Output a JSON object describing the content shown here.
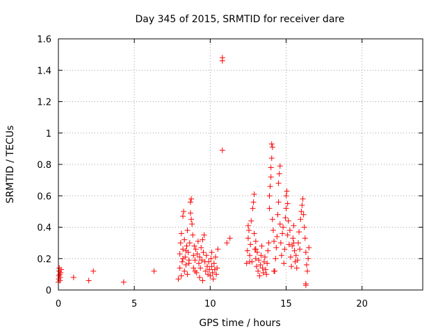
{
  "chart_data": {
    "type": "scatter",
    "title": "Day 345 of 2015, SRMTID for receiver dare",
    "xlabel": "GPS time / hours",
    "ylabel": "SRMTID / TECUs",
    "xlim": [
      0,
      24
    ],
    "ylim": [
      0,
      1.6
    ],
    "xticks": [
      0,
      5,
      10,
      15,
      20
    ],
    "xtick_labels": [
      "0",
      "5",
      "10",
      "15",
      "20"
    ],
    "yticks": [
      0,
      0.2,
      0.4,
      0.6,
      0.8,
      1.0,
      1.2,
      1.4,
      1.6
    ],
    "ytick_labels": [
      "0",
      "0.2",
      "0.4",
      "0.6",
      "0.8",
      "1",
      "1.2",
      "1.4",
      "1.6"
    ],
    "grid": true,
    "marker": "+",
    "color": "#ff0000",
    "series": [
      {
        "name": "SRMTID",
        "points": [
          [
            0.0,
            0.05
          ],
          [
            0.02,
            0.07
          ],
          [
            0.03,
            0.09
          ],
          [
            0.05,
            0.12
          ],
          [
            0.06,
            0.14
          ],
          [
            0.08,
            0.1
          ],
          [
            0.1,
            0.06
          ],
          [
            0.12,
            0.08
          ],
          [
            0.15,
            0.11
          ],
          [
            0.18,
            0.13
          ],
          [
            1.0,
            0.08
          ],
          [
            2.0,
            0.06
          ],
          [
            2.3,
            0.12
          ],
          [
            4.3,
            0.05
          ],
          [
            6.3,
            0.12
          ],
          [
            7.9,
            0.07
          ],
          [
            8.0,
            0.14
          ],
          [
            8.0,
            0.23
          ],
          [
            8.05,
            0.3
          ],
          [
            8.1,
            0.09
          ],
          [
            8.1,
            0.36
          ],
          [
            8.15,
            0.18
          ],
          [
            8.2,
            0.26
          ],
          [
            8.2,
            0.47
          ],
          [
            8.25,
            0.5
          ],
          [
            8.3,
            0.12
          ],
          [
            8.3,
            0.32
          ],
          [
            8.35,
            0.21
          ],
          [
            8.4,
            0.16
          ],
          [
            8.45,
            0.28
          ],
          [
            8.5,
            0.1
          ],
          [
            8.5,
            0.38
          ],
          [
            8.55,
            0.24
          ],
          [
            8.6,
            0.17
          ],
          [
            8.65,
            0.3
          ],
          [
            8.7,
            0.49
          ],
          [
            8.7,
            0.56
          ],
          [
            8.75,
            0.58
          ],
          [
            8.75,
            0.45
          ],
          [
            8.8,
            0.42
          ],
          [
            8.85,
            0.35
          ],
          [
            8.9,
            0.22
          ],
          [
            8.9,
            0.14
          ],
          [
            8.95,
            0.28
          ],
          [
            9.0,
            0.19
          ],
          [
            9.05,
            0.26
          ],
          [
            9.1,
            0.11
          ],
          [
            9.15,
            0.23
          ],
          [
            9.2,
            0.31
          ],
          [
            9.25,
            0.17
          ],
          [
            9.3,
            0.21
          ],
          [
            9.35,
            0.14
          ],
          [
            9.4,
            0.27
          ],
          [
            9.45,
            0.19
          ],
          [
            9.5,
            0.06
          ],
          [
            9.5,
            0.32
          ],
          [
            9.55,
            0.24
          ],
          [
            9.6,
            0.35
          ],
          [
            9.65,
            0.18
          ],
          [
            9.7,
            0.12
          ],
          [
            9.75,
            0.22
          ],
          [
            9.8,
            0.15
          ],
          [
            9.85,
            0.1
          ],
          [
            9.9,
            0.18
          ],
          [
            9.95,
            0.13
          ],
          [
            10.0,
            0.09
          ],
          [
            10.05,
            0.2
          ],
          [
            10.1,
            0.15
          ],
          [
            10.1,
            0.24
          ],
          [
            10.15,
            0.11
          ],
          [
            10.2,
            0.07
          ],
          [
            10.25,
            0.17
          ],
          [
            10.3,
            0.13
          ],
          [
            10.35,
            0.21
          ],
          [
            10.4,
            0.1
          ],
          [
            10.45,
            0.14
          ],
          [
            10.5,
            0.26
          ],
          [
            8.6,
            0.19
          ],
          [
            9.0,
            0.12
          ],
          [
            9.3,
            0.08
          ],
          [
            8.2,
            0.2
          ],
          [
            8.4,
            0.25
          ],
          [
            10.8,
            1.48
          ],
          [
            10.8,
            1.46
          ],
          [
            10.8,
            0.89
          ],
          [
            11.1,
            0.3
          ],
          [
            11.3,
            0.33
          ],
          [
            12.4,
            0.17
          ],
          [
            12.45,
            0.25
          ],
          [
            12.5,
            0.33
          ],
          [
            12.5,
            0.41
          ],
          [
            12.55,
            0.38
          ],
          [
            12.6,
            0.22
          ],
          [
            12.65,
            0.29
          ],
          [
            12.7,
            0.44
          ],
          [
            12.75,
            0.18
          ],
          [
            12.8,
            0.52
          ],
          [
            12.85,
            0.56
          ],
          [
            12.9,
            0.61
          ],
          [
            12.9,
            0.36
          ],
          [
            12.95,
            0.26
          ],
          [
            13.0,
            0.2
          ],
          [
            13.0,
            0.31
          ],
          [
            13.05,
            0.15
          ],
          [
            13.1,
            0.24
          ],
          [
            13.15,
            0.12
          ],
          [
            13.2,
            0.19
          ],
          [
            13.25,
            0.09
          ],
          [
            13.3,
            0.16
          ],
          [
            13.35,
            0.22
          ],
          [
            13.4,
            0.28
          ],
          [
            13.45,
            0.14
          ],
          [
            13.5,
            0.11
          ],
          [
            13.55,
            0.18
          ],
          [
            13.6,
            0.21
          ],
          [
            13.65,
            0.13
          ],
          [
            13.7,
            0.1
          ],
          [
            13.75,
            0.17
          ],
          [
            13.8,
            0.25
          ],
          [
            13.85,
            0.3
          ],
          [
            13.9,
            0.52
          ],
          [
            13.9,
            0.6
          ],
          [
            13.95,
            0.66
          ],
          [
            14.0,
            0.72
          ],
          [
            14.0,
            0.78
          ],
          [
            14.05,
            0.84
          ],
          [
            14.05,
            0.93
          ],
          [
            14.1,
            0.91
          ],
          [
            14.1,
            0.45
          ],
          [
            14.15,
            0.38
          ],
          [
            14.2,
            0.31
          ],
          [
            14.25,
            0.12
          ],
          [
            14.3,
            0.2
          ],
          [
            14.35,
            0.27
          ],
          [
            14.4,
            0.34
          ],
          [
            14.45,
            0.48
          ],
          [
            14.5,
            0.56
          ],
          [
            14.5,
            0.68
          ],
          [
            14.55,
            0.74
          ],
          [
            14.6,
            0.79
          ],
          [
            14.6,
            0.42
          ],
          [
            14.65,
            0.3
          ],
          [
            14.7,
            0.22
          ],
          [
            14.75,
            0.36
          ],
          [
            14.8,
            0.4
          ],
          [
            14.85,
            0.17
          ],
          [
            14.9,
            0.26
          ],
          [
            14.95,
            0.46
          ],
          [
            15.0,
            0.52
          ],
          [
            15.0,
            0.6
          ],
          [
            15.05,
            0.63
          ],
          [
            15.1,
            0.55
          ],
          [
            15.1,
            0.35
          ],
          [
            15.15,
            0.44
          ],
          [
            15.2,
            0.29
          ],
          [
            15.25,
            0.38
          ],
          [
            15.3,
            0.21
          ],
          [
            15.35,
            0.15
          ],
          [
            15.4,
            0.28
          ],
          [
            15.45,
            0.33
          ],
          [
            15.5,
            0.41
          ],
          [
            15.55,
            0.25
          ],
          [
            15.6,
            0.18
          ],
          [
            15.65,
            0.22
          ],
          [
            15.7,
            0.14
          ],
          [
            15.75,
            0.19
          ],
          [
            15.8,
            0.3
          ],
          [
            15.85,
            0.37
          ],
          [
            15.9,
            0.26
          ],
          [
            15.95,
            0.45
          ],
          [
            16.0,
            0.5
          ],
          [
            16.05,
            0.54
          ],
          [
            16.1,
            0.58
          ],
          [
            16.15,
            0.48
          ],
          [
            16.2,
            0.4
          ],
          [
            16.25,
            0.33
          ],
          [
            16.3,
            0.24
          ],
          [
            16.3,
            0.04
          ],
          [
            16.35,
            0.16
          ],
          [
            16.4,
            0.12
          ],
          [
            16.45,
            0.2
          ],
          [
            16.5,
            0.27
          ],
          [
            16.3,
            0.03
          ],
          [
            12.6,
            0.18
          ],
          [
            13.0,
            0.26
          ],
          [
            14.2,
            0.12
          ],
          [
            15.5,
            0.3
          ]
        ]
      }
    ]
  }
}
